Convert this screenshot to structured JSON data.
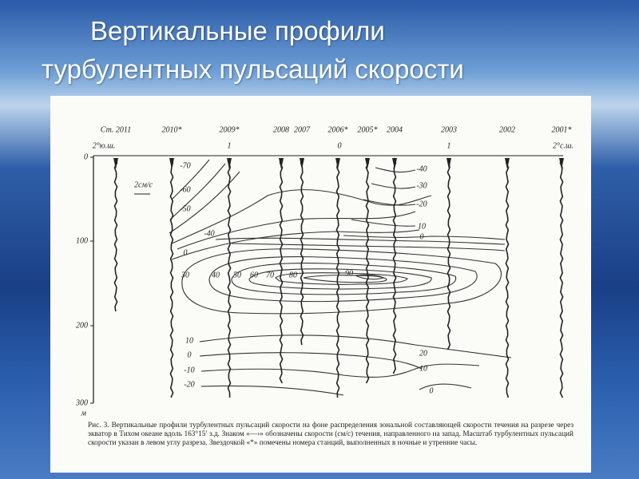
{
  "slide": {
    "title": [
      "Вертикальные профили",
      "турбулентных пульсаций скорости"
    ],
    "figure": {
      "stations": [
        "Ст. 2011",
        "2010*",
        "2009*",
        "2008",
        "2007",
        "2006*",
        "2005*",
        "2004",
        "2003",
        "2002",
        "2001*"
      ],
      "latitudes": [
        "2°ю.ш.",
        "1",
        "0",
        "1",
        "2°с.ш."
      ],
      "depth_labels": [
        "0",
        "100",
        "200",
        "300"
      ],
      "depth_unit": "м",
      "scale_label": "2см/с",
      "contour_labels_left": [
        "-70",
        "-60",
        "-50",
        "-40",
        "0"
      ],
      "contour_labels_core": [
        "30",
        "40",
        "50",
        "60",
        "70",
        "80",
        "90"
      ],
      "contour_labels_right": [
        "-40",
        "-30",
        "-20",
        "10",
        "0"
      ],
      "contour_labels_bottom_left": [
        "10",
        "0",
        "-10",
        "-20"
      ],
      "contour_labels_bottom_right": [
        "20",
        "10",
        "0"
      ],
      "caption": "Рис. 3. Вертикальные профили турбулентных пульсаций скорости на фоне распределения зональной составляющей скорости течения на разрезе через экватор в Тихом океане вдоль 163°15′ з.д. Знаком «—›» обозначены скорости (см/с) течения, направленного на запад. Масштаб турбулентных пульсаций скорости указан в левом углу разреза. Звездочкой «*» помечены номера станций, выполненных в ночные и утренние часы."
    }
  }
}
